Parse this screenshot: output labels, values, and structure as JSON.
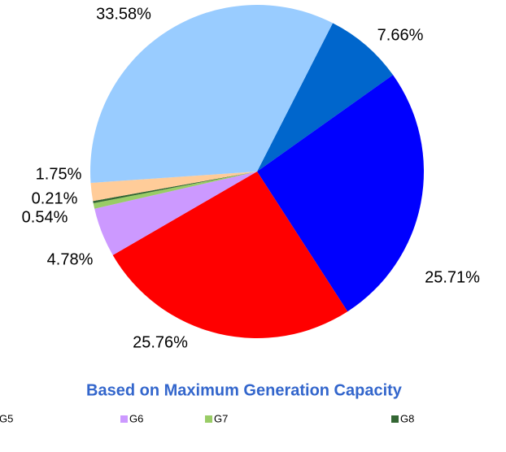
{
  "chart_data": {
    "type": "pie",
    "title": "Based on Maximum Generation Capacity",
    "values": [
      7.66,
      25.71,
      25.76,
      4.78,
      0.54,
      0.21,
      1.75,
      33.58
    ],
    "value_labels": [
      "7.66%",
      "25.71%",
      "25.76%",
      "4.78%",
      "0.54%",
      "0.21%",
      "1.75%",
      "33.58%"
    ],
    "colors": [
      "#0066CC",
      "#0000FF",
      "#FF0000",
      "#CC99FF",
      "#99CC66",
      "#336633",
      "#FFCC99",
      "#99CCFF"
    ],
    "legend": [
      {
        "name": "G5",
        "color": "#FF0000"
      },
      {
        "name": "G6",
        "color": "#CC99FF"
      },
      {
        "name": "G7",
        "color": "#99CC66"
      },
      {
        "name": "G8",
        "color": "#336633"
      }
    ]
  }
}
